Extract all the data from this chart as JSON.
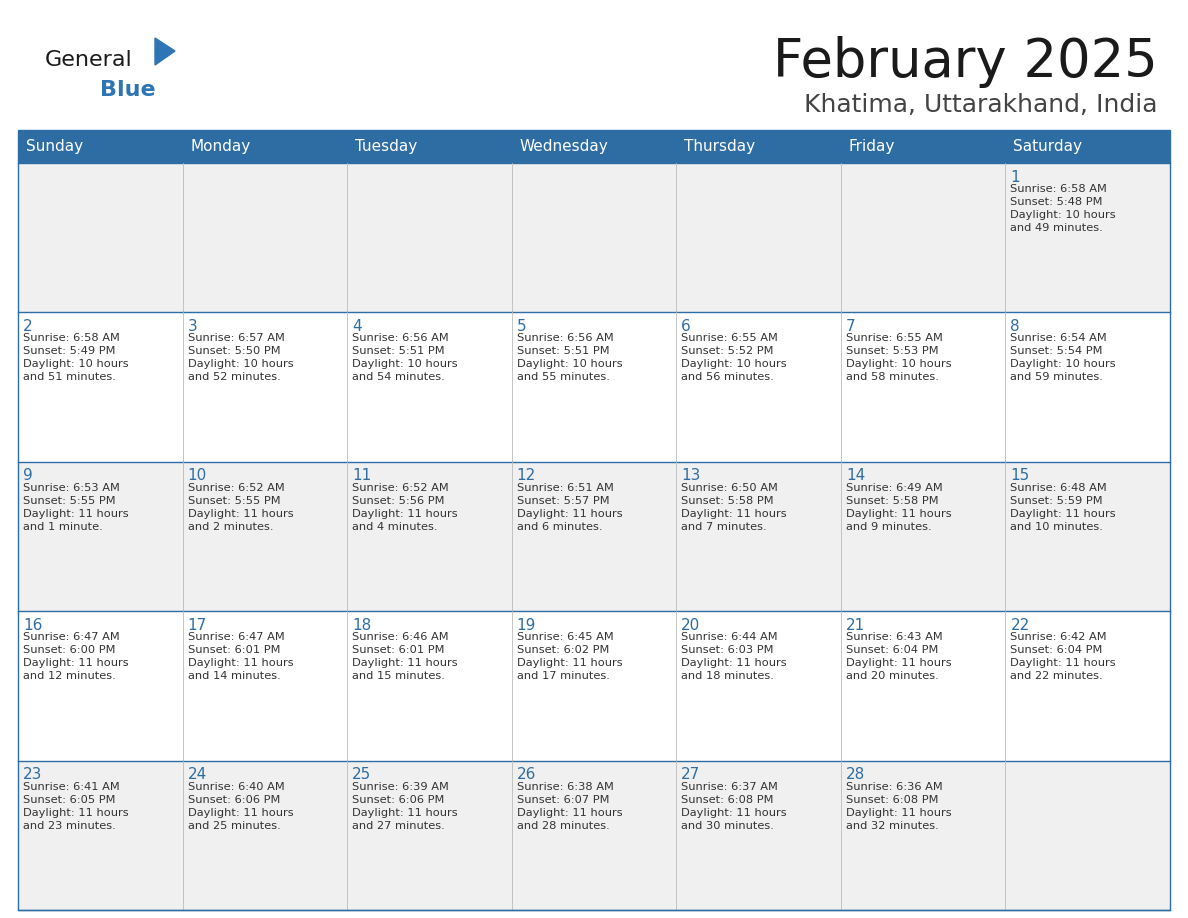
{
  "title": "February 2025",
  "subtitle": "Khatima, Uttarakhand, India",
  "header_bg": "#2E6DA4",
  "header_text": "#FFFFFF",
  "cell_bg_odd": "#F0F0F0",
  "cell_bg_even": "#FFFFFF",
  "border_color": "#2E6DA4",
  "sep_color": "#BBBBBB",
  "day_names": [
    "Sunday",
    "Monday",
    "Tuesday",
    "Wednesday",
    "Thursday",
    "Friday",
    "Saturday"
  ],
  "title_color": "#1a1a1a",
  "subtitle_color": "#444444",
  "day_number_color": "#2E6DA4",
  "info_color": "#333333",
  "logo_general_color": "#1a1a1a",
  "logo_blue_color": "#2E75B6",
  "weeks": [
    [
      {
        "day": null,
        "info": ""
      },
      {
        "day": null,
        "info": ""
      },
      {
        "day": null,
        "info": ""
      },
      {
        "day": null,
        "info": ""
      },
      {
        "day": null,
        "info": ""
      },
      {
        "day": null,
        "info": ""
      },
      {
        "day": 1,
        "info": "Sunrise: 6:58 AM\nSunset: 5:48 PM\nDaylight: 10 hours\nand 49 minutes."
      }
    ],
    [
      {
        "day": 2,
        "info": "Sunrise: 6:58 AM\nSunset: 5:49 PM\nDaylight: 10 hours\nand 51 minutes."
      },
      {
        "day": 3,
        "info": "Sunrise: 6:57 AM\nSunset: 5:50 PM\nDaylight: 10 hours\nand 52 minutes."
      },
      {
        "day": 4,
        "info": "Sunrise: 6:56 AM\nSunset: 5:51 PM\nDaylight: 10 hours\nand 54 minutes."
      },
      {
        "day": 5,
        "info": "Sunrise: 6:56 AM\nSunset: 5:51 PM\nDaylight: 10 hours\nand 55 minutes."
      },
      {
        "day": 6,
        "info": "Sunrise: 6:55 AM\nSunset: 5:52 PM\nDaylight: 10 hours\nand 56 minutes."
      },
      {
        "day": 7,
        "info": "Sunrise: 6:55 AM\nSunset: 5:53 PM\nDaylight: 10 hours\nand 58 minutes."
      },
      {
        "day": 8,
        "info": "Sunrise: 6:54 AM\nSunset: 5:54 PM\nDaylight: 10 hours\nand 59 minutes."
      }
    ],
    [
      {
        "day": 9,
        "info": "Sunrise: 6:53 AM\nSunset: 5:55 PM\nDaylight: 11 hours\nand 1 minute."
      },
      {
        "day": 10,
        "info": "Sunrise: 6:52 AM\nSunset: 5:55 PM\nDaylight: 11 hours\nand 2 minutes."
      },
      {
        "day": 11,
        "info": "Sunrise: 6:52 AM\nSunset: 5:56 PM\nDaylight: 11 hours\nand 4 minutes."
      },
      {
        "day": 12,
        "info": "Sunrise: 6:51 AM\nSunset: 5:57 PM\nDaylight: 11 hours\nand 6 minutes."
      },
      {
        "day": 13,
        "info": "Sunrise: 6:50 AM\nSunset: 5:58 PM\nDaylight: 11 hours\nand 7 minutes."
      },
      {
        "day": 14,
        "info": "Sunrise: 6:49 AM\nSunset: 5:58 PM\nDaylight: 11 hours\nand 9 minutes."
      },
      {
        "day": 15,
        "info": "Sunrise: 6:48 AM\nSunset: 5:59 PM\nDaylight: 11 hours\nand 10 minutes."
      }
    ],
    [
      {
        "day": 16,
        "info": "Sunrise: 6:47 AM\nSunset: 6:00 PM\nDaylight: 11 hours\nand 12 minutes."
      },
      {
        "day": 17,
        "info": "Sunrise: 6:47 AM\nSunset: 6:01 PM\nDaylight: 11 hours\nand 14 minutes."
      },
      {
        "day": 18,
        "info": "Sunrise: 6:46 AM\nSunset: 6:01 PM\nDaylight: 11 hours\nand 15 minutes."
      },
      {
        "day": 19,
        "info": "Sunrise: 6:45 AM\nSunset: 6:02 PM\nDaylight: 11 hours\nand 17 minutes."
      },
      {
        "day": 20,
        "info": "Sunrise: 6:44 AM\nSunset: 6:03 PM\nDaylight: 11 hours\nand 18 minutes."
      },
      {
        "day": 21,
        "info": "Sunrise: 6:43 AM\nSunset: 6:04 PM\nDaylight: 11 hours\nand 20 minutes."
      },
      {
        "day": 22,
        "info": "Sunrise: 6:42 AM\nSunset: 6:04 PM\nDaylight: 11 hours\nand 22 minutes."
      }
    ],
    [
      {
        "day": 23,
        "info": "Sunrise: 6:41 AM\nSunset: 6:05 PM\nDaylight: 11 hours\nand 23 minutes."
      },
      {
        "day": 24,
        "info": "Sunrise: 6:40 AM\nSunset: 6:06 PM\nDaylight: 11 hours\nand 25 minutes."
      },
      {
        "day": 25,
        "info": "Sunrise: 6:39 AM\nSunset: 6:06 PM\nDaylight: 11 hours\nand 27 minutes."
      },
      {
        "day": 26,
        "info": "Sunrise: 6:38 AM\nSunset: 6:07 PM\nDaylight: 11 hours\nand 28 minutes."
      },
      {
        "day": 27,
        "info": "Sunrise: 6:37 AM\nSunset: 6:08 PM\nDaylight: 11 hours\nand 30 minutes."
      },
      {
        "day": 28,
        "info": "Sunrise: 6:36 AM\nSunset: 6:08 PM\nDaylight: 11 hours\nand 32 minutes."
      },
      {
        "day": null,
        "info": ""
      }
    ]
  ]
}
